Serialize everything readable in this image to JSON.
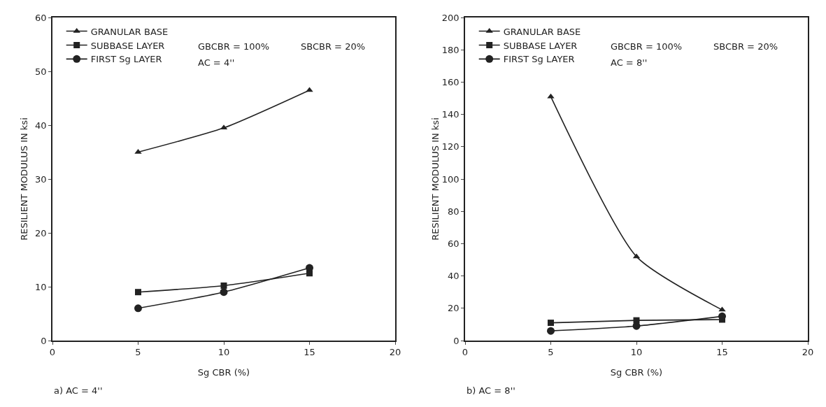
{
  "chart_data": [
    {
      "type": "line",
      "xlabel": "Sg CBR (%)",
      "ylabel": "RESILIENT MODULUS IN ksi",
      "x": [
        5,
        10,
        15
      ],
      "xlim": [
        0,
        20
      ],
      "xticks": [
        0,
        5,
        10,
        15,
        20
      ],
      "ylim": [
        0,
        60
      ],
      "yticks": [
        0,
        10,
        20,
        30,
        40,
        50,
        60
      ],
      "grid": false,
      "legend": "top left",
      "line_style": "solid",
      "series": [
        {
          "name": "GRANULAR BASE",
          "color": "#222222",
          "marker": "triangle",
          "values": [
            35,
            39.5,
            46.5
          ]
        },
        {
          "name": "SUBBASE LAYER",
          "color": "#222222",
          "marker": "square",
          "values": [
            9,
            10.2,
            12.5
          ]
        },
        {
          "name": "FIRST Sg LAYER",
          "color": "#222222",
          "marker": "circle",
          "values": [
            6,
            9,
            13.5
          ]
        }
      ],
      "annotations": [
        "GBCBR = 100%",
        "SBCBR = 20%",
        "AC = 4''",
        "a) AC = 4''"
      ]
    },
    {
      "type": "line",
      "xlabel": "Sg CBR (%)",
      "ylabel": "RESILIENT MODULUS IN ksi",
      "x": [
        5,
        10,
        15
      ],
      "xlim": [
        0,
        20
      ],
      "xticks": [
        0,
        5,
        10,
        15,
        20
      ],
      "ylim": [
        0,
        200
      ],
      "yticks": [
        0,
        20,
        40,
        60,
        80,
        100,
        120,
        140,
        160,
        180,
        200
      ],
      "grid": false,
      "legend": "top left",
      "line_style": "solid",
      "series": [
        {
          "name": "GRANULAR BASE",
          "color": "#222222",
          "marker": "triangle",
          "values": [
            151,
            52,
            19
          ]
        },
        {
          "name": "SUBBASE LAYER",
          "color": "#222222",
          "marker": "square",
          "values": [
            11,
            12.5,
            13
          ]
        },
        {
          "name": "FIRST Sg LAYER",
          "color": "#222222",
          "marker": "circle",
          "values": [
            6,
            9,
            15
          ]
        }
      ],
      "annotations": [
        "GBCBR = 100%",
        "SBCBR = 20%",
        "AC = 8''",
        "b) AC = 8''"
      ]
    }
  ]
}
